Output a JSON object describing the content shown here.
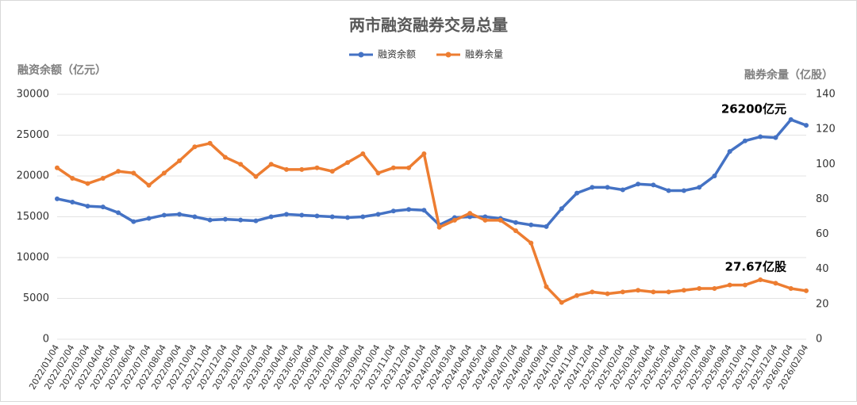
{
  "chart_data": {
    "type": "line",
    "title": "两市融资融券交易总量",
    "y_label": "融资余额（亿元）",
    "y2_label": "融券余量（亿股）",
    "categories": [
      "2022/01/04",
      "2022/02/04",
      "2022/03/04",
      "2022/04/04",
      "2022/05/04",
      "2022/06/04",
      "2022/07/04",
      "2022/08/04",
      "2022/09/04",
      "2022/10/04",
      "2022/11/04",
      "2022/12/04",
      "2023/01/04",
      "2023/02/04",
      "2023/03/04",
      "2023/04/04",
      "2023/05/04",
      "2023/06/04",
      "2023/07/04",
      "2023/08/04",
      "2023/09/04",
      "2023/10/04",
      "2023/11/04",
      "2023/12/04",
      "2024/01/04",
      "2024/02/04",
      "2024/03/04",
      "2024/04/04",
      "2024/05/04",
      "2024/06/04",
      "2024/07/04",
      "2024/08/04",
      "2024/09/04",
      "2024/10/04",
      "2024/11/04",
      "2024/12/04",
      "2025/01/04",
      "2025/02/04",
      "2025/03/04",
      "2025/04/04",
      "2025/05/04",
      "2025/06/04",
      "2025/07/04",
      "2025/08/04",
      "2025/09/04",
      "2025/10/04",
      "2025/11/04",
      "2025/12/04",
      "2026/01/04",
      "2026/02/04"
    ],
    "series": [
      {
        "name": "融资余额",
        "color": "#4472c4",
        "values": [
          17200,
          16800,
          16300,
          16200,
          15500,
          14400,
          14800,
          15200,
          15300,
          15000,
          14600,
          14700,
          14600,
          14500,
          15000,
          15300,
          15200,
          15100,
          15000,
          14900,
          15000,
          15300,
          15700,
          15900,
          15800,
          14000,
          14900,
          15000,
          15000,
          14800,
          14300,
          14000,
          13800,
          16000,
          17900,
          18600,
          18600,
          18300,
          19000,
          18900,
          18200,
          18200,
          18600,
          20000,
          23000,
          24300,
          24800,
          24700,
          26900,
          26200
        ]
      },
      {
        "name": "融券余量",
        "color": "#ed7d31",
        "axis": "y2",
        "values": [
          98,
          92,
          89,
          92,
          96,
          95,
          88,
          95,
          102,
          110,
          112,
          104,
          100,
          93,
          100,
          97,
          97,
          98,
          96,
          101,
          106,
          95,
          98,
          98,
          106,
          64,
          68,
          72,
          68,
          68,
          62,
          55,
          30,
          21,
          25,
          27,
          26,
          27,
          28,
          27,
          27,
          28,
          29,
          29,
          31,
          31,
          34,
          32,
          29,
          27.67
        ]
      }
    ],
    "annotations": [
      "26200亿元",
      "27.67亿股"
    ],
    "ylim": [
      0,
      30000
    ],
    "yticks": [
      0,
      5000,
      10000,
      15000,
      20000,
      25000,
      30000
    ],
    "y2lim": [
      0,
      140
    ],
    "y2ticks": [
      0,
      20,
      40,
      60,
      80,
      100,
      120,
      140
    ],
    "grid": true
  }
}
